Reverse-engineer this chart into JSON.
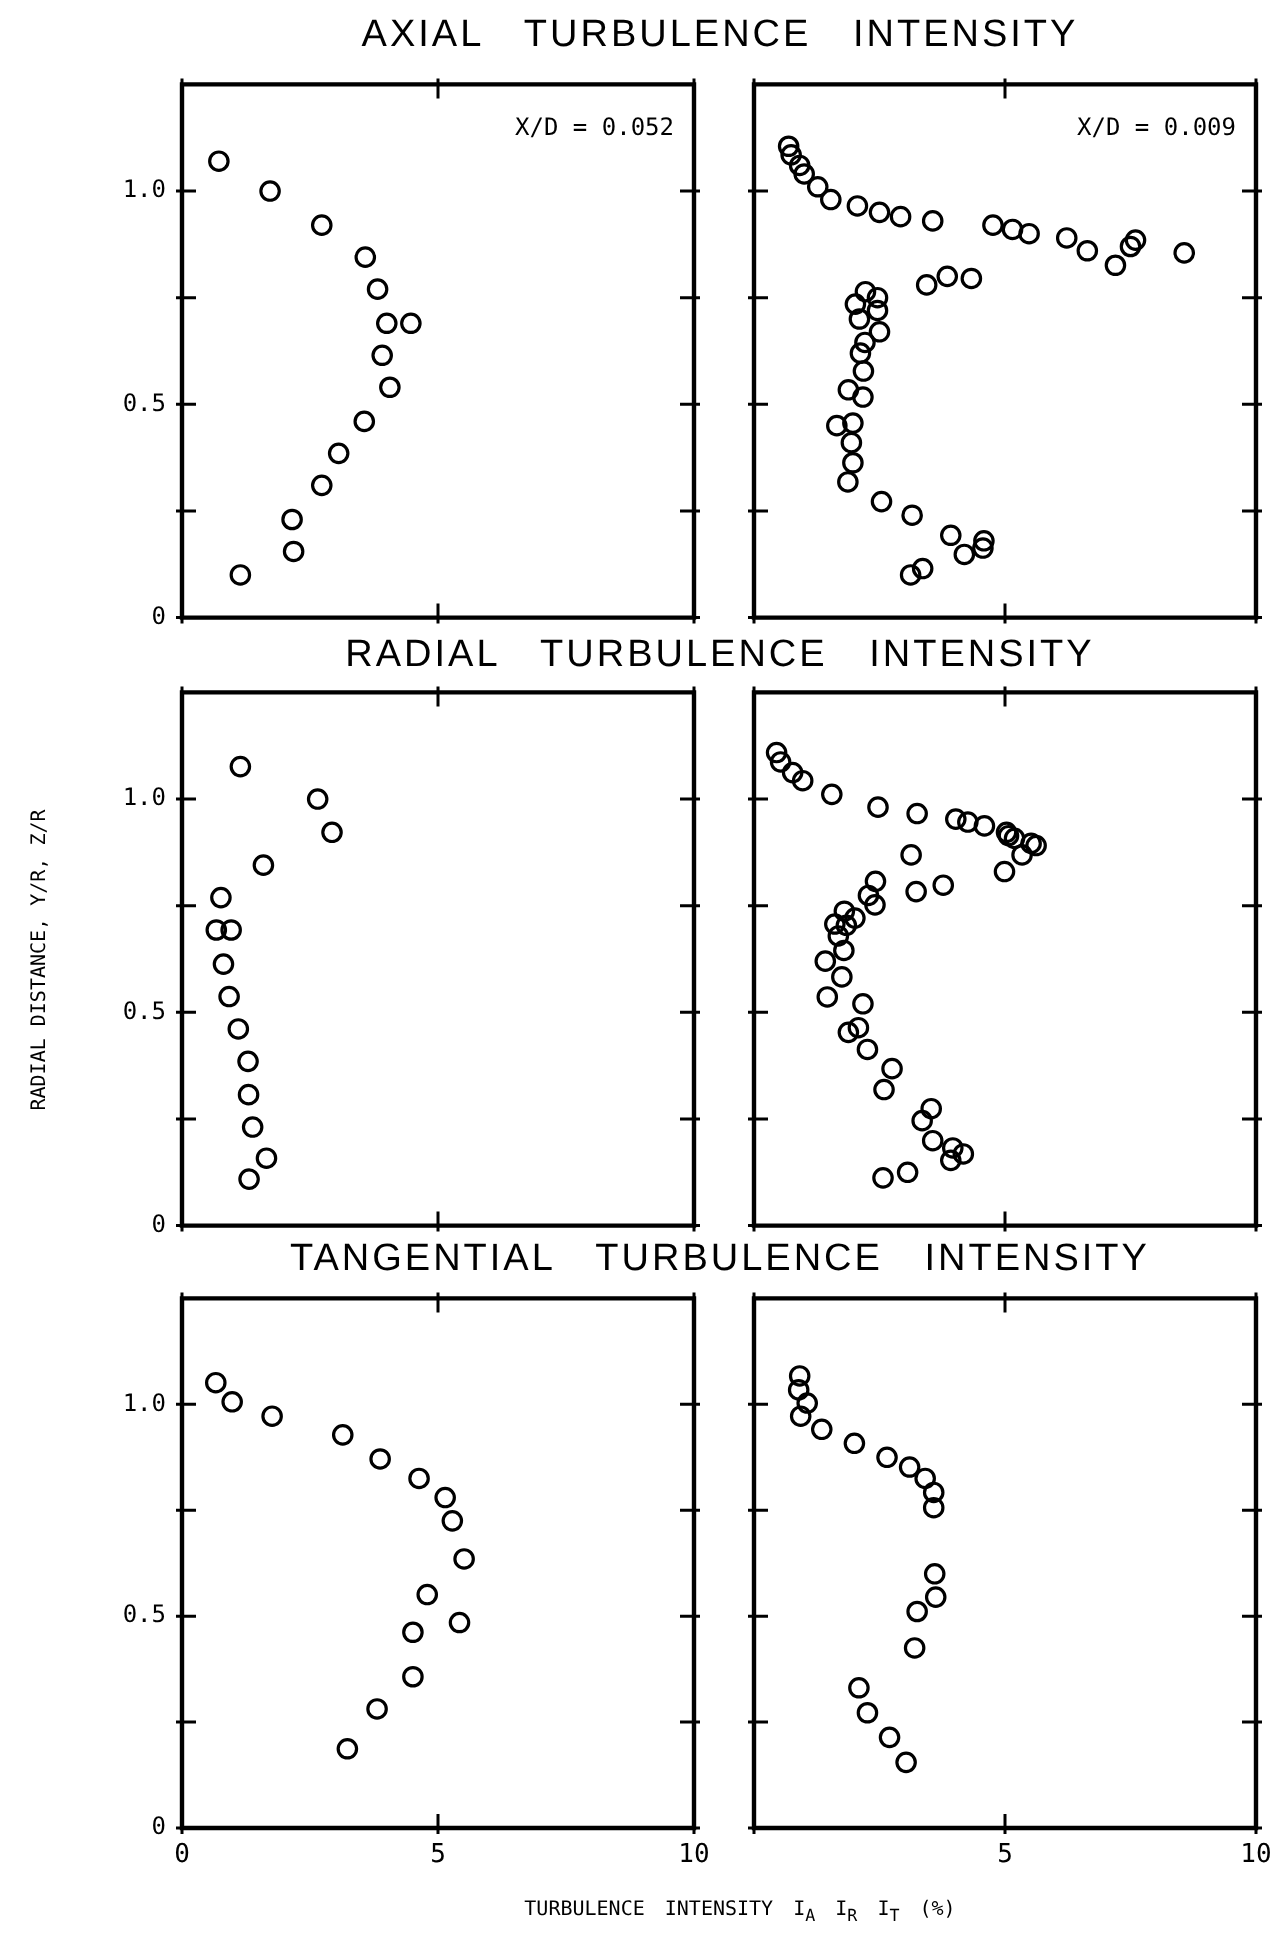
{
  "chart_data": [
    {
      "type": "scatter",
      "title": "AXIAL TURBULENCE INTENSITY",
      "annotations": [
        "X/D = 0.052"
      ],
      "color": "#000000",
      "marker": "circle",
      "tick_labels": "y",
      "xlim": [
        0,
        10
      ],
      "ylim": [
        0,
        1.25
      ],
      "xticks": [
        0,
        5,
        10
      ],
      "yticks": [
        0,
        {
          "value": 0.25,
          "label": null
        },
        0.5,
        {
          "value": 0.75,
          "label": null
        },
        {
          "value": 1,
          "label": "1.0"
        }
      ],
      "x": [
        0.72,
        1.72,
        2.73,
        3.58,
        3.82,
        4.0,
        4.47,
        3.91,
        4.06,
        3.56,
        3.06,
        2.73,
        2.15,
        2.18,
        1.14
      ],
      "values": [
        1.07,
        1.0,
        0.92,
        0.845,
        0.77,
        0.69,
        0.69,
        0.615,
        0.54,
        0.46,
        0.385,
        0.31,
        0.23,
        0.155,
        0.1
      ]
    },
    {
      "type": "scatter",
      "annotations": [
        "X/D = 0.009"
      ],
      "color": "#000000",
      "marker": "circle",
      "tick_labels": false,
      "xlim": [
        0,
        10
      ],
      "ylim": [
        0,
        1.25
      ],
      "xticks": [
        0,
        5,
        10
      ],
      "yticks": [
        0,
        0.25,
        0.5,
        0.75,
        1
      ],
      "x": [
        0.69,
        0.74,
        0.91,
        1.0,
        1.27,
        1.53,
        2.06,
        2.5,
        2.92,
        3.56,
        4.76,
        5.15,
        5.48,
        6.23,
        6.64,
        7.2,
        7.5,
        7.6,
        8.57,
        3.44,
        3.85,
        4.33,
        2.22,
        2.46,
        2.02,
        2.46,
        2.1,
        2.5,
        2.21,
        2.12,
        2.18,
        1.88,
        2.17,
        1.65,
        1.97,
        1.94,
        1.97,
        1.87,
        2.54,
        3.15,
        3.92,
        4.58,
        4.56,
        4.19,
        3.36,
        3.12
      ],
      "values": [
        1.105,
        1.085,
        1.06,
        1.04,
        1.01,
        0.98,
        0.965,
        0.95,
        0.94,
        0.93,
        0.92,
        0.91,
        0.9,
        0.89,
        0.86,
        0.826,
        0.87,
        0.885,
        0.855,
        0.78,
        0.8,
        0.795,
        0.764,
        0.75,
        0.735,
        0.72,
        0.7,
        0.67,
        0.645,
        0.62,
        0.578,
        0.534,
        0.517,
        0.45,
        0.456,
        0.41,
        0.363,
        0.318,
        0.272,
        0.24,
        0.193,
        0.18,
        0.163,
        0.148,
        0.115,
        0.1
      ]
    },
    {
      "type": "scatter",
      "title": "RADIAL TURBULENCE INTENSITY",
      "ylabel": "RADIAL DISTANCE, Y/R, Z/R",
      "color": "#000000",
      "marker": "circle",
      "tick_labels": "y",
      "xlim": [
        0,
        10
      ],
      "ylim": [
        0,
        1.25
      ],
      "xticks": [
        0,
        5,
        10
      ],
      "yticks": [
        0,
        {
          "value": 0.25,
          "label": null
        },
        0.5,
        {
          "value": 0.75,
          "label": null
        },
        {
          "value": 1,
          "label": "1.0"
        }
      ],
      "x": [
        1.14,
        2.65,
        2.93,
        1.59,
        0.76,
        0.67,
        0.96,
        0.81,
        0.92,
        1.1,
        1.29,
        1.3,
        1.38,
        1.65,
        1.31
      ],
      "values": [
        1.076,
        1.0,
        0.922,
        0.845,
        0.769,
        0.693,
        0.693,
        0.613,
        0.537,
        0.461,
        0.385,
        0.307,
        0.231,
        0.158,
        0.109
      ]
    },
    {
      "type": "scatter",
      "color": "#000000",
      "marker": "circle",
      "tick_labels": false,
      "xlim": [
        0,
        10
      ],
      "ylim": [
        0,
        1.25
      ],
      "xticks": [
        0,
        5,
        10
      ],
      "yticks": [
        0,
        0.25,
        0.5,
        0.75,
        1
      ],
      "x": [
        0.45,
        0.53,
        0.77,
        0.97,
        1.55,
        2.47,
        3.25,
        4.02,
        4.26,
        4.59,
        5.03,
        5.07,
        5.19,
        5.62,
        5.52,
        5.34,
        4.99,
        3.13,
        3.77,
        3.23,
        2.42,
        2.28,
        2.41,
        1.8,
        2.01,
        1.61,
        1.84,
        1.68,
        1.79,
        1.42,
        1.75,
        1.46,
        2.17,
        1.88,
        2.08,
        2.26,
        2.75,
        2.59,
        3.53,
        3.35,
        3.56,
        3.96,
        4.17,
        3.92,
        3.06,
        2.57
      ],
      "values": [
        1.109,
        1.087,
        1.062,
        1.043,
        1.011,
        0.981,
        0.966,
        0.953,
        0.946,
        0.937,
        0.922,
        0.914,
        0.908,
        0.891,
        0.896,
        0.869,
        0.83,
        0.869,
        0.798,
        0.783,
        0.807,
        0.774,
        0.752,
        0.737,
        0.721,
        0.707,
        0.704,
        0.679,
        0.645,
        0.62,
        0.583,
        0.536,
        0.52,
        0.453,
        0.464,
        0.413,
        0.368,
        0.319,
        0.274,
        0.246,
        0.199,
        0.182,
        0.168,
        0.153,
        0.125,
        0.112
      ]
    },
    {
      "type": "scatter",
      "title": "TANGENTIAL TURBULENCE INTENSITY",
      "xlabel": "TURBULENCE INTENSITY I$_{A}$ I$_{R}$ I$_{T}$ (%)",
      "color": "#000000",
      "marker": "circle",
      "xlim": [
        0,
        10
      ],
      "ylim": [
        0,
        1.25
      ],
      "xticks": [
        0,
        5,
        10
      ],
      "yticks": [
        0,
        {
          "value": 0.25,
          "label": null
        },
        0.5,
        {
          "value": 0.75,
          "label": null
        },
        {
          "value": 1,
          "label": "1.0"
        }
      ],
      "x": [
        0.66,
        0.98,
        1.76,
        3.14,
        3.87,
        4.63,
        5.14,
        5.28,
        5.51,
        4.79,
        5.42,
        4.51,
        4.51,
        3.81,
        3.23
      ],
      "values": [
        1.051,
        1.006,
        0.972,
        0.928,
        0.871,
        0.825,
        0.78,
        0.725,
        0.635,
        0.551,
        0.485,
        0.462,
        0.357,
        0.281,
        0.187
      ]
    },
    {
      "type": "scatter",
      "color": "#000000",
      "marker": "circle",
      "tick_labels": "x",
      "xlim": [
        0,
        10
      ],
      "ylim": [
        0,
        1.25
      ],
      "xticks": [
        {
          "value": 0,
          "label": null
        },
        5,
        10
      ],
      "yticks": [
        0,
        0.25,
        0.5,
        0.75,
        1
      ],
      "x": [
        0.91,
        0.89,
        1.06,
        0.93,
        1.35,
        2.0,
        2.65,
        3.1,
        3.41,
        3.58,
        3.58,
        3.6,
        3.62,
        3.25,
        3.2,
        2.09,
        2.26,
        2.7,
        3.03
      ],
      "values": [
        1.067,
        1.034,
        1.003,
        0.972,
        0.941,
        0.908,
        0.875,
        0.852,
        0.825,
        0.792,
        0.756,
        0.6,
        0.545,
        0.511,
        0.425,
        0.331,
        0.272,
        0.214,
        0.155
      ]
    }
  ]
}
